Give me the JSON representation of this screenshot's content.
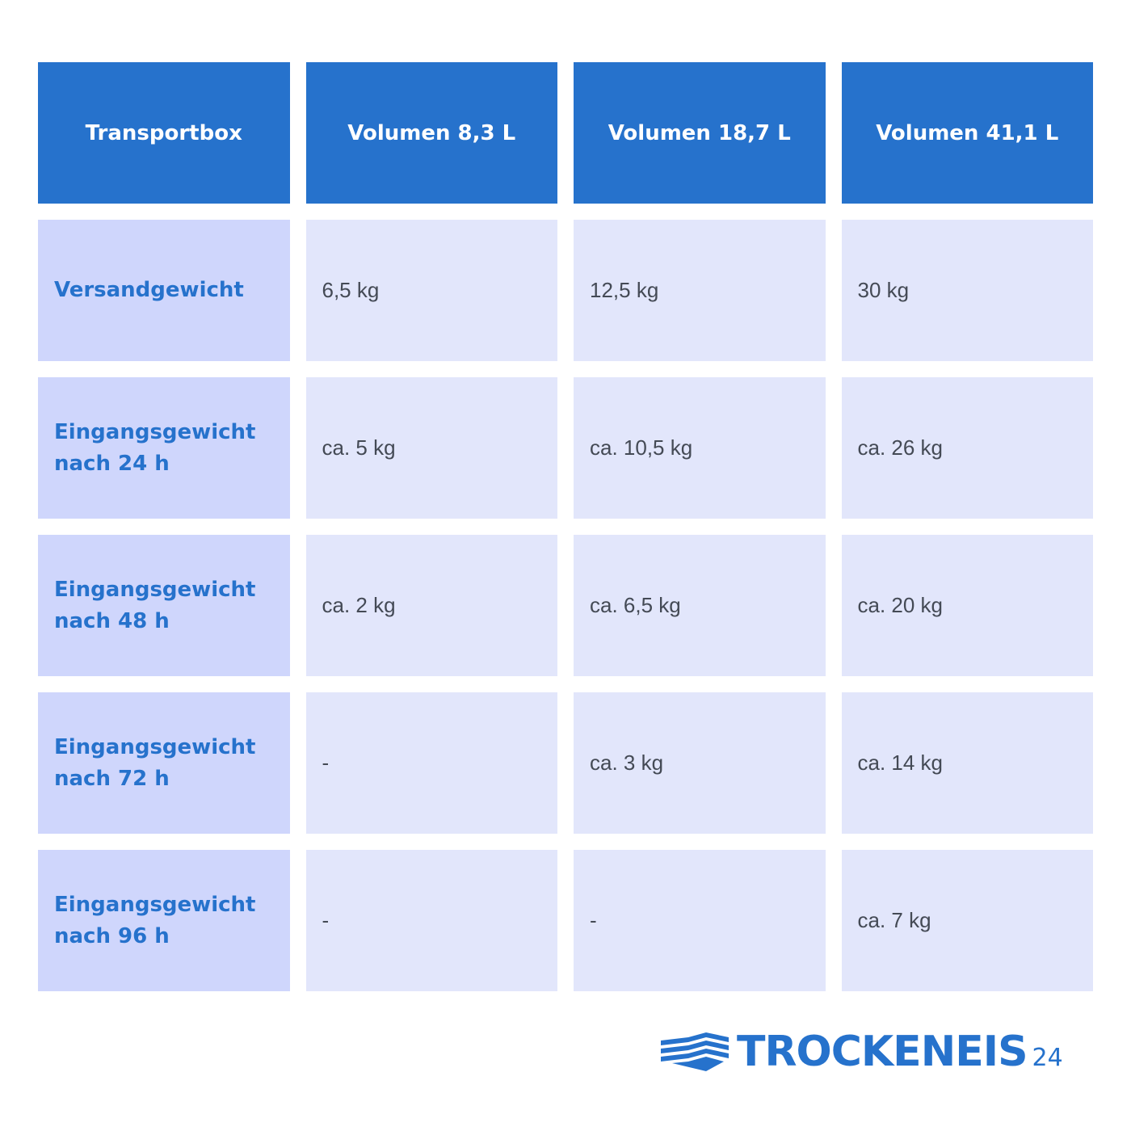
{
  "table": {
    "header": [
      "Transportbox",
      "Volumen 8,3 L",
      "Volumen 18,7 L",
      "Volumen 41,1 L"
    ],
    "rows": [
      [
        "Versandgewicht",
        "6,5 kg",
        "12,5 kg",
        "30 kg"
      ],
      [
        "Eingangsgewicht nach 24 h",
        "ca. 5 kg",
        "ca. 10,5 kg",
        "ca. 26 kg"
      ],
      [
        "Eingangsgewicht nach 48 h",
        "ca. 2 kg",
        "ca. 6,5 kg",
        "ca. 20 kg"
      ],
      [
        "Eingangsgewicht nach 72 h",
        "-",
        "ca. 3 kg",
        "ca. 14 kg"
      ],
      [
        "Eingangsgewicht nach 96 h",
        "-",
        "-",
        "ca. 7 kg"
      ]
    ]
  },
  "logo": {
    "name": "TROCKENEIS",
    "suffix": "24"
  }
}
